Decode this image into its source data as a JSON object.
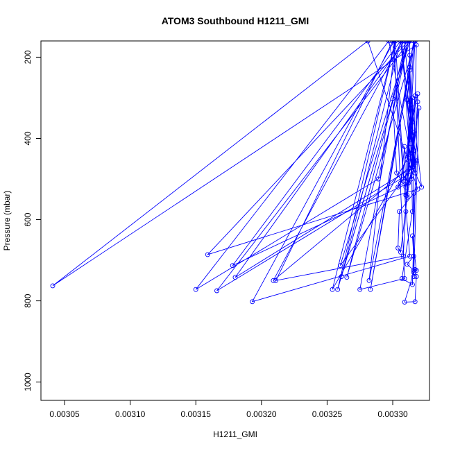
{
  "chart_data": {
    "type": "line",
    "title": "ATOM3 Southbound H1211_GMI",
    "xlabel": "H1211_GMI",
    "ylabel": "Pressure (mbar)",
    "xlim": [
      0.003032,
      0.003328
    ],
    "ylim": [
      1045,
      160
    ],
    "y_reversed": true,
    "x_ticks": [
      "0.00305",
      "0.00310",
      "0.00315",
      "0.00320",
      "0.00325",
      "0.00330"
    ],
    "y_ticks": [
      "200",
      "400",
      "600",
      "800",
      "1000"
    ],
    "grid": false,
    "line_color": "#0000ff",
    "marker": "open-circle",
    "series": [
      {
        "x": [
          0.003304,
          0.003316,
          0.003318,
          0.003041,
          0.003281,
          0.003319,
          0.003159,
          0.003312,
          0.003289,
          0.00315,
          0.003297,
          0.003316,
          0.003166,
          0.003313,
          0.003312,
          0.003178,
          0.003306,
          0.003316,
          0.00318,
          0.003309,
          0.003317,
          0.003209,
          0.003307,
          0.003313,
          0.003254,
          0.003302,
          0.003258,
          0.003313,
          0.003261,
          0.003306,
          0.003318,
          0.00326,
          0.003312,
          0.003265,
          0.003317,
          0.003282,
          0.003302,
          0.00331,
          0.003316,
          0.003283,
          0.003317,
          0.003308,
          0.003211,
          0.0033,
          0.003313,
          0.003193,
          0.003301,
          0.003309,
          0.003275,
          0.00331,
          0.0033,
          0.003303,
          0.00331,
          0.00332,
          0.003316,
          0.003315,
          0.003314,
          0.003315,
          0.003307,
          0.003315,
          0.003319,
          0.003306,
          0.003309,
          0.00331,
          0.003315,
          0.003322,
          0.003315,
          0.003316,
          0.003313,
          0.00331,
          0.003316,
          0.003311,
          0.003317,
          0.003311,
          0.003315,
          0.003317,
          0.003319,
          0.003315,
          0.003316,
          0.003314,
          0.003313,
          0.003313,
          0.003311,
          0.003316,
          0.003313,
          0.003311,
          0.003306,
          0.003304,
          0.003305,
          0.003316,
          0.003316,
          0.003309,
          0.003317,
          0.003318,
          0.003317,
          0.003316,
          0.003311,
          0.003316,
          0.003315,
          0.003318
        ],
        "y": [
          520,
          465,
          170,
          763,
          160,
          525,
          686,
          160,
          500,
          772,
          160,
          480,
          775,
          160,
          510,
          713,
          160,
          470,
          742,
          160,
          460,
          750,
          160,
          440,
          772,
          160,
          772,
          160,
          740,
          160,
          455,
          713,
          160,
          742,
          160,
          750,
          160,
          580,
          160,
          772,
          160,
          690,
          750,
          160,
          690,
          802,
          160,
          745,
          772,
          160,
          302,
          485,
          520,
          325,
          740,
          300,
          413,
          580,
          745,
          760,
          290,
          510,
          420,
          540,
          470,
          520,
          325,
          470,
          310,
          505,
          455,
          540,
          295,
          452,
          360,
          485,
          310,
          470,
          385,
          500,
          195,
          232,
          305,
          430,
          225,
          545,
          680,
          670,
          580,
          535,
          730,
          803,
          802,
          740,
          723,
          725,
          710,
          690,
          640,
          725
        ]
      }
    ]
  }
}
